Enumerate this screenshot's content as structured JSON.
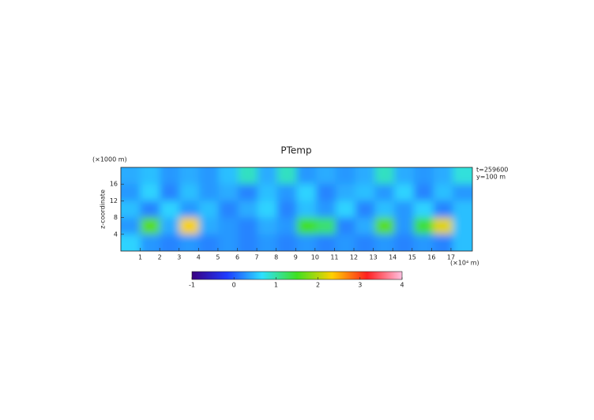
{
  "chart_data": {
    "type": "heatmap",
    "title": "PTemp",
    "y_unit": "(×1000 m)",
    "ylabel": "z-coordinate",
    "x_unit": "(×10⁴ m)",
    "annotations": [
      "t=259600",
      "y=100 m"
    ],
    "xlim": [
      0,
      18.1
    ],
    "xticks": [
      1,
      2,
      3,
      4,
      5,
      6,
      7,
      8,
      9,
      10,
      11,
      12,
      13,
      14,
      15,
      16,
      17
    ],
    "ylim": [
      0,
      20
    ],
    "yticks": [
      4,
      8,
      12,
      16
    ],
    "z": [
      [
        0.4,
        0.5,
        0.3,
        0.4,
        0.3,
        0.5,
        0.9,
        0.4,
        0.9,
        0.3,
        0.4,
        0.3,
        0.4,
        0.9,
        0.4,
        0.3,
        0.4,
        0.8
      ],
      [
        0.3,
        0.6,
        0.2,
        0.5,
        0.3,
        0.4,
        0.2,
        0.5,
        0.3,
        0.6,
        0.2,
        0.4,
        0.5,
        0.3,
        0.6,
        0.2,
        0.5,
        0.3
      ],
      [
        0.5,
        0.2,
        0.6,
        0.3,
        0.5,
        0.2,
        0.4,
        0.6,
        0.2,
        0.5,
        0.3,
        0.6,
        0.2,
        0.5,
        0.3,
        0.6,
        0.2,
        0.5
      ],
      [
        0.3,
        1.6,
        0.4,
        2.3,
        0.4,
        0.3,
        0.2,
        0.4,
        0.3,
        1.5,
        1.2,
        0.2,
        0.4,
        1.6,
        0.3,
        1.4,
        2.2,
        0.5
      ],
      [
        0.6,
        0.3,
        0.2,
        0.3,
        0.2,
        0.3,
        0.2,
        0.3,
        0.2,
        0.3,
        0.2,
        0.3,
        0.2,
        0.3,
        0.2,
        0.3,
        0.2,
        0.5
      ]
    ],
    "zlim": [
      -1,
      4
    ],
    "zticks": [
      -1,
      0,
      1,
      2,
      3,
      4
    ],
    "colors": [
      "#3a0080",
      "#1e3cff",
      "#2ee0ff",
      "#40e020",
      "#ffd000",
      "#ff2020",
      "#ffc0e0"
    ]
  }
}
